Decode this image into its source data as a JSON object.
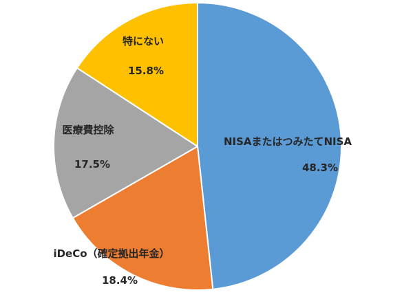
{
  "chart_data": {
    "type": "pie",
    "slices": [
      {
        "label": "NISAまたはつみたてNISA",
        "value": 48.3,
        "value_label": "48.3%",
        "color": "#5B9BD5"
      },
      {
        "label": "iDeCo（確定拠出年金）",
        "value": 18.4,
        "value_label": "18.4%",
        "color": "#ED7D31"
      },
      {
        "label": "医療費控除",
        "value": 17.5,
        "value_label": "17.5%",
        "color": "#A5A5A5"
      },
      {
        "label": "特にない",
        "value": 15.8,
        "value_label": "15.8%",
        "color": "#FFC000"
      }
    ],
    "start": "12 o'clock",
    "direction": "clockwise",
    "legend": "none"
  }
}
